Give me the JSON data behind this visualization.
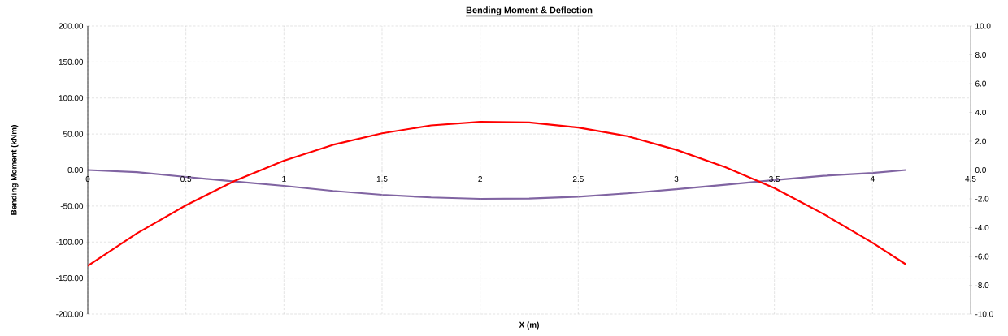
{
  "chart_data": {
    "type": "line",
    "title": "Bending Moment  & Deflection",
    "xlabel": "X (m)",
    "ylabel": "Bending Moment (kNm)",
    "series": [
      {
        "color": "#ff0000",
        "x": [
          0,
          0.25,
          0.5,
          0.75,
          1,
          1.25,
          1.5,
          1.75,
          2,
          2.25,
          2.5,
          2.75,
          3,
          3.25,
          3.5,
          3.75,
          4,
          4.17
        ],
        "values": [
          -133,
          -88,
          -49,
          -15,
          13,
          35,
          51,
          62,
          67,
          66,
          59,
          47,
          28,
          4,
          -25,
          -61,
          -101,
          -131
        ]
      },
      {
        "color": "#8064a2",
        "axis": "y2",
        "x": [
          0,
          0.25,
          0.5,
          0.75,
          1,
          1.25,
          1.5,
          1.75,
          2,
          2.25,
          2.5,
          2.75,
          3,
          3.25,
          3.5,
          3.75,
          4,
          4.17
        ],
        "values": [
          0,
          -0.15,
          -0.48,
          -0.8,
          -1.1,
          -1.45,
          -1.72,
          -1.9,
          -2.0,
          -1.98,
          -1.85,
          -1.62,
          -1.33,
          -1.02,
          -0.7,
          -0.4,
          -0.2,
          0
        ]
      }
    ],
    "xlim": [
      0,
      4.5
    ],
    "xticks": [
      0,
      0.5,
      1,
      1.5,
      2,
      2.5,
      3,
      3.5,
      4,
      4.5
    ],
    "ylim": [
      -200,
      200
    ],
    "yticks": [
      {
        "value": -200,
        "label": "-200.00"
      },
      {
        "value": -150,
        "label": "-150.00"
      },
      {
        "value": -100,
        "label": "-100.00"
      },
      {
        "value": -50,
        "label": "-50.00"
      },
      {
        "value": 0,
        "label": "0.00"
      },
      {
        "value": 50,
        "label": "50.00"
      },
      {
        "value": 100,
        "label": "100.00"
      },
      {
        "value": 150,
        "label": "150.00"
      },
      {
        "value": 200,
        "label": "200.00"
      }
    ],
    "y2lim": [
      -10,
      10
    ],
    "y2ticks": [
      {
        "value": -10,
        "label": "-10.0"
      },
      {
        "value": -8,
        "label": "-8.0"
      },
      {
        "value": -6,
        "label": "-6.0"
      },
      {
        "value": -4,
        "label": "-4.0"
      },
      {
        "value": -2,
        "label": "-2.0"
      },
      {
        "value": 0,
        "label": "0.0"
      },
      {
        "value": 2,
        "label": "2.0"
      },
      {
        "value": 4,
        "label": "4.0"
      },
      {
        "value": 6,
        "label": "6.0"
      },
      {
        "value": 8,
        "label": "8.0"
      },
      {
        "value": 10,
        "label": "10.0"
      }
    ],
    "grid": true,
    "legend": false,
    "marker": "none",
    "line_style": "solid"
  }
}
